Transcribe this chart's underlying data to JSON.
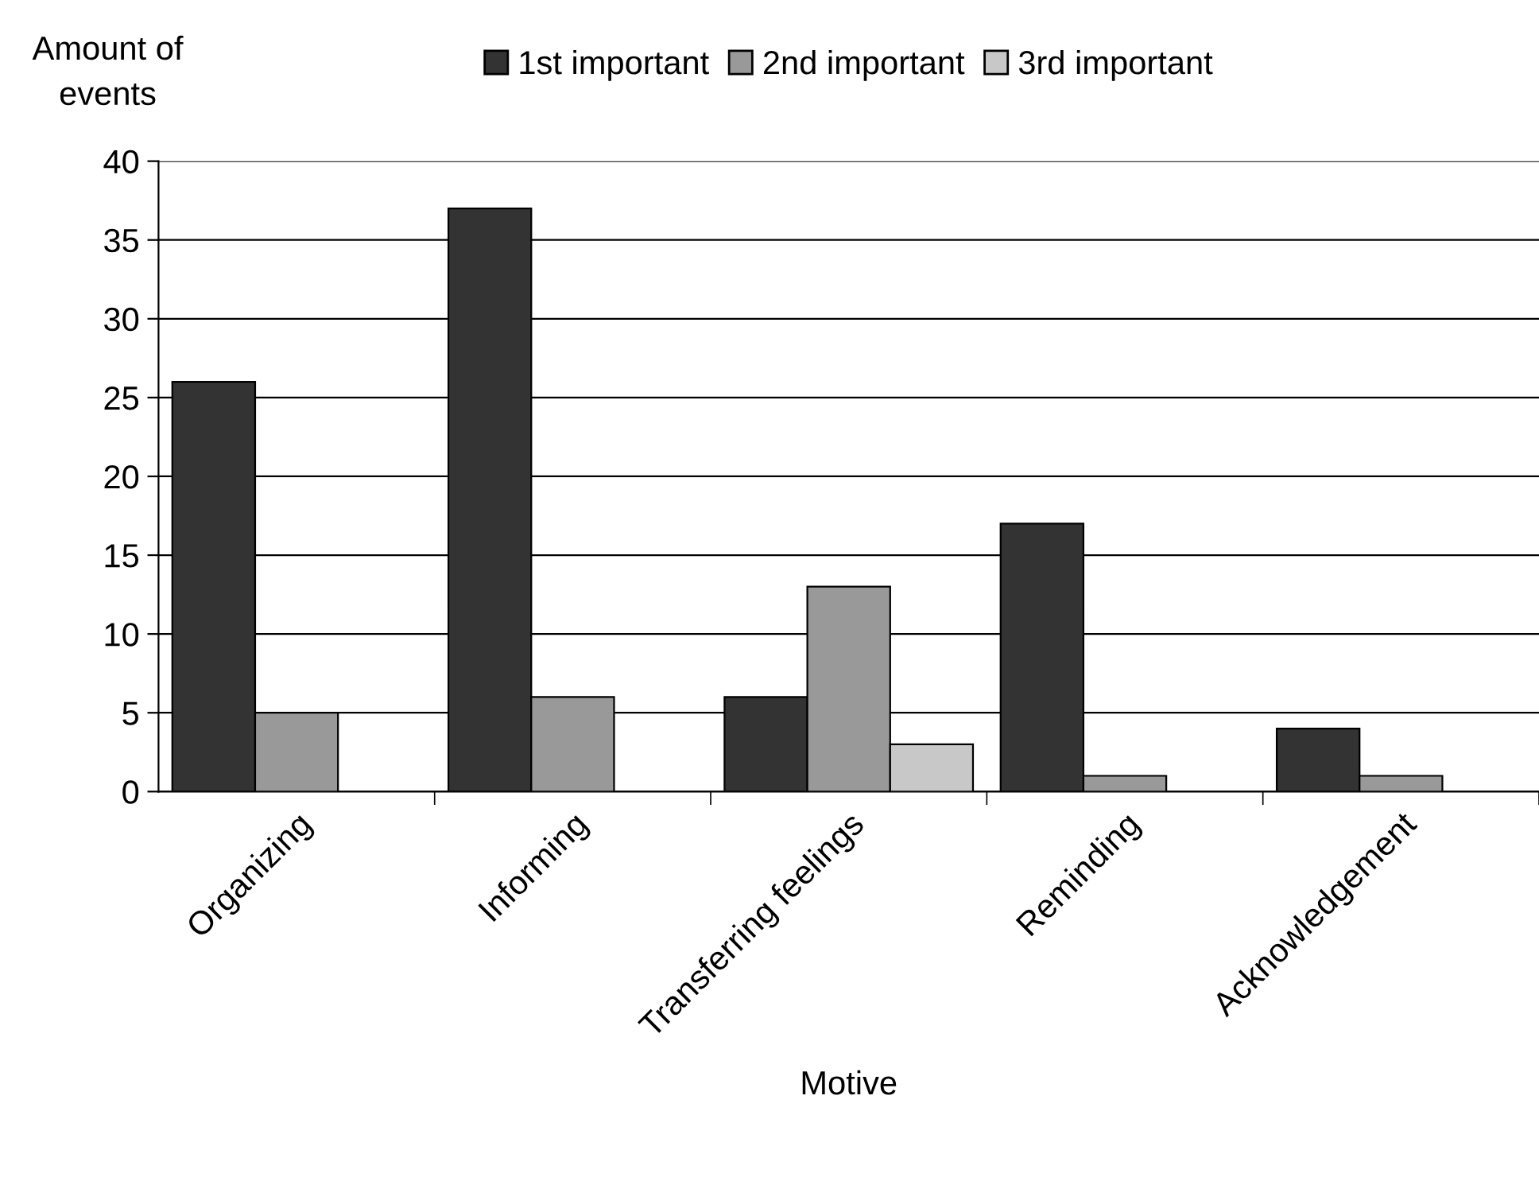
{
  "chart_data": {
    "type": "bar",
    "xlabel": "Motive",
    "ylabel": "Amount of\nevents",
    "categories": [
      "Organizing",
      "Informing",
      "Transferring feelings",
      "Reminding",
      "Acknowledgement"
    ],
    "series": [
      {
        "name": "1st important",
        "color": "#333333",
        "values": [
          26,
          37,
          6,
          17,
          4
        ]
      },
      {
        "name": "2nd important",
        "color": "#999999",
        "values": [
          5,
          6,
          13,
          1,
          1
        ]
      },
      {
        "name": "3rd important",
        "color": "#c8c8c8",
        "values": [
          null,
          null,
          3,
          null,
          null
        ]
      }
    ],
    "ylim": [
      0,
      40
    ],
    "yticks": [
      0,
      5,
      10,
      15,
      20,
      25,
      30,
      35,
      40
    ],
    "grid": "y",
    "legend": "top"
  }
}
